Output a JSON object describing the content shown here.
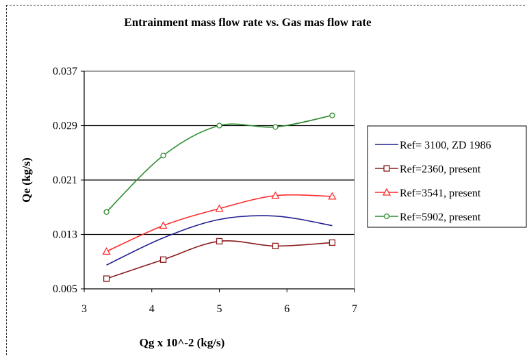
{
  "chart_data": {
    "type": "line",
    "title": "Entrainment mass flow rate vs. Gas mas flow rate",
    "xlabel": "Qg x 10^-2 (kg/s)",
    "ylabel": "Qe (kg/s)",
    "xlim": [
      3,
      7
    ],
    "ylim": [
      0.005,
      0.037
    ],
    "xticks": [
      3,
      4,
      5,
      6,
      7
    ],
    "yticks": [
      0.005,
      0.013,
      0.021,
      0.029,
      0.037
    ],
    "xtick_labels": [
      "3",
      "4",
      "5",
      "6",
      "7"
    ],
    "ytick_labels": [
      "0.005",
      "0.013",
      "0.021",
      "0.029",
      "0.037"
    ],
    "grid": "horizontal",
    "legend_position": "right",
    "series": [
      {
        "name": "Ref= 3100, ZD 1986",
        "color": "#1f1f8f",
        "marker": "none",
        "x": [
          3.33,
          4.17,
          5.0,
          5.83,
          6.67
        ],
        "y": [
          0.0085,
          0.0125,
          0.0152,
          0.0157,
          0.0143
        ]
      },
      {
        "name": "Ref=2360, present",
        "color": "#8b1a1a",
        "marker": "square",
        "x": [
          3.33,
          4.17,
          5.0,
          5.83,
          6.67
        ],
        "y": [
          0.0065,
          0.0093,
          0.012,
          0.0113,
          0.0118
        ]
      },
      {
        "name": "Ref=3541, present",
        "color": "#ff2a2a",
        "marker": "triangle",
        "x": [
          3.33,
          4.17,
          5.0,
          5.83,
          6.67
        ],
        "y": [
          0.0105,
          0.0143,
          0.0168,
          0.0187,
          0.0186
        ]
      },
      {
        "name": "Ref=5902, present",
        "color": "#2e8b2e",
        "marker": "circle",
        "x": [
          3.33,
          4.17,
          5.0,
          5.83,
          6.67
        ],
        "y": [
          0.0163,
          0.0246,
          0.029,
          0.0288,
          0.0305
        ]
      }
    ]
  }
}
